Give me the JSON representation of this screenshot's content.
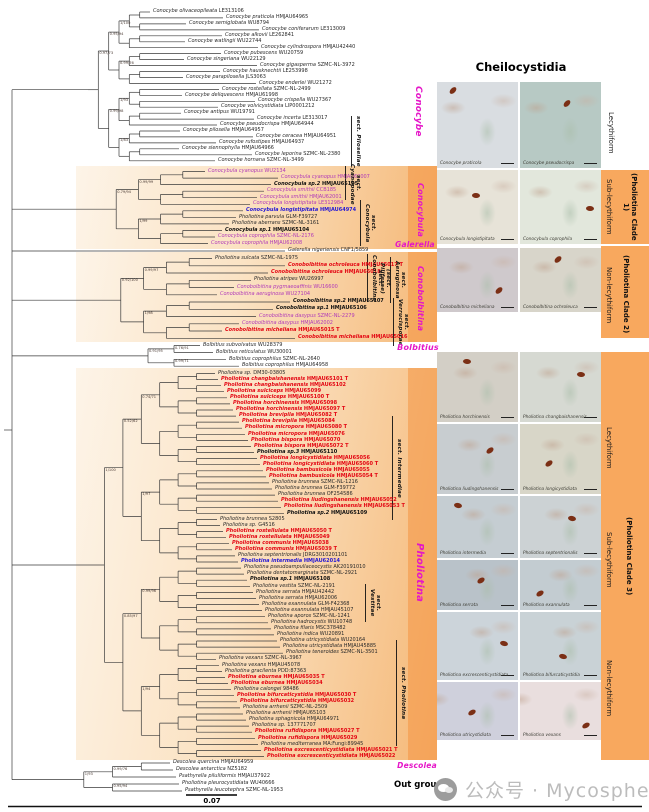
{
  "right_panel": {
    "title": "Cheilocystidia",
    "clade_labels": [
      "(Pholiotina Clade 1)",
      "(Pholiotina Clade 2)",
      "(Pholiotina Clade 3)"
    ],
    "rows": [
      {
        "form": "Lecythiform",
        "images": [
          {
            "caption": "Conocybe praticola",
            "tint": "#d9dde1"
          },
          {
            "caption": "Conocybe pseudocrispa",
            "tint": "#b7c9c4"
          }
        ]
      },
      {
        "form": "Sub-lecythiform",
        "images": [
          {
            "caption": "Conocybula longistipitata",
            "tint": "#e7e3d8"
          },
          {
            "caption": "Conocybula coprophila",
            "tint": "#e2e7dc"
          }
        ]
      },
      {
        "form": "Non-lecythiform",
        "images": [
          {
            "caption": "Conobolbitina micheliana",
            "tint": "#cfc9cc"
          },
          {
            "caption": "Conobolbitina ochroleuca",
            "tint": "#d8d5ca"
          }
        ]
      },
      {
        "form": "",
        "images": [
          {
            "caption": "Pholiotina horchinensis",
            "tint": "#d3cfc6"
          },
          {
            "caption": "Pholiotina changbaishanensis",
            "tint": "#d6d9d2"
          }
        ]
      },
      {
        "form": "Lecythiform",
        "images": [
          {
            "caption": "Pholiotina liudingshanensis",
            "tint": "#c8cdd0"
          },
          {
            "caption": "Pholiotina longicystidiata",
            "tint": "#d8d6c8"
          }
        ]
      },
      {
        "form": "",
        "images": [
          {
            "caption": "Pholiotina intermedia",
            "tint": "#c5cdd2"
          },
          {
            "caption": "Pholiotina septentrionalis",
            "tint": "#ccd2d4"
          }
        ]
      },
      {
        "form": "Sub-lecythiform",
        "images": [
          {
            "caption": "Pholiotina serrata",
            "tint": "#b9c2c9"
          },
          {
            "caption": "Pholiotina exannulata",
            "tint": "#c3ccd1"
          }
        ]
      },
      {
        "form": "",
        "images": [
          {
            "caption": "Pholiotina excrescenticystidiata",
            "tint": "#ccd4da"
          },
          {
            "caption": "Pholiotina bifurcaticystidia",
            "tint": "#c9d2d6"
          }
        ]
      },
      {
        "form": "Non-lecythiform",
        "images": [
          {
            "caption": "Pholiotina utricystidiata",
            "tint": "#cfd0dc"
          },
          {
            "caption": "Pholiotina vexans",
            "tint": "#e9dede"
          }
        ]
      }
    ]
  },
  "sections": [
    "sect. Pilosellae",
    "sect. Cyanopodae",
    "sect. Conocybula",
    "sect. Conobolbitina",
    "(sect. Piliferae)",
    "sect. Aeruginosa",
    "sect. Verrucisporae",
    "sect. Intermediae",
    "sect. Vestitae",
    "sect. Pholiotina"
  ],
  "genus_labels": [
    "Conocybe",
    "Conocybula",
    "Galerella",
    "Conobolbitina",
    "Bolbitius",
    "Pholiotina",
    "Descolea"
  ],
  "tree": {
    "scale_bar": "0.07",
    "outgroup_label": "Out group",
    "support_values": [
      "1/100",
      "0.99/76",
      "0.95/94",
      "1/93",
      "1/83",
      "0.99/98",
      "0.97/73",
      "0.99/99",
      "1/99",
      "0.79/94",
      "0.99/97",
      "1/98",
      "0.92/100",
      "0.76/91",
      "0.99/71",
      "0.91/95",
      "0.74/71",
      "1/97",
      "0.52/62",
      "0.99/96",
      "1/94",
      "0.85/97"
    ],
    "clades": [
      {
        "name": "Conocybe",
        "taxa": [
          {
            "n": "Conocybe olivaceopileata",
            "a": "LE313106",
            "s": "p"
          },
          {
            "n": "Conocybe praticola",
            "a": "HMJAU64965",
            "s": "p"
          },
          {
            "n": "Conocybe semiglobata",
            "a": "WU8794",
            "s": "p"
          },
          {
            "n": "Conocybe coniferarum",
            "a": "LE313009",
            "s": "p"
          },
          {
            "n": "Conocybe alkovii",
            "a": "LE262841",
            "s": "p"
          },
          {
            "n": "Conocybe watlingii",
            "a": "WU22744",
            "s": "p"
          },
          {
            "n": "Conocybe cylindrospora",
            "a": "HMJAU42440",
            "s": "p"
          },
          {
            "n": "Conocybe pubescens",
            "a": "WU20759",
            "s": "p"
          },
          {
            "n": "Conocybe singeriana",
            "a": "WU22129",
            "s": "p"
          },
          {
            "n": "Conocybe gigasperma",
            "a": "SZMC-NL-3972",
            "s": "p"
          },
          {
            "n": "Conocybe hausknechtii",
            "a": "LE253998",
            "s": "p"
          },
          {
            "n": "Conocybe parapilosella",
            "a": "JLS3063",
            "s": "p"
          },
          {
            "n": "Conocybe enderlei",
            "a": "WU21272",
            "s": "p"
          },
          {
            "n": "Conocybe rostellata",
            "a": "SZMC-NL-2499",
            "s": "p"
          },
          {
            "n": "Conocybe deliquescens",
            "a": "HMJAU61998",
            "s": "p"
          },
          {
            "n": "Conocybe crispella",
            "a": "WU27367",
            "s": "p"
          },
          {
            "n": "Conocybe volvicystidiata",
            "a": "LIP0001212",
            "s": "p"
          },
          {
            "n": "Conocybe antipus",
            "a": "WU19791",
            "s": "p"
          },
          {
            "n": "Conocybe incerta",
            "a": "LE313017",
            "s": "p"
          },
          {
            "n": "Conocybe pseudocrispa",
            "a": "HMJAU64944",
            "s": "p"
          },
          {
            "n": "Conocybe pilosella",
            "a": "HMJAU64957",
            "s": "p"
          },
          {
            "n": "Conocybe ceracea",
            "a": "HMJAU64951",
            "s": "p"
          },
          {
            "n": "Conocybe rufostipes",
            "a": "HMJAU64937",
            "s": "p"
          },
          {
            "n": "Conocybe siennophylla",
            "a": "HMJAU64966",
            "s": "p"
          },
          {
            "n": "Conocybe leporina",
            "a": "SZMC-NL-2380",
            "s": "p"
          },
          {
            "n": "Conocybe hornana",
            "a": "SZMC-NL-3499",
            "s": "p"
          }
        ]
      },
      {
        "name": "Conocybula",
        "taxa": [
          {
            "n": "Conocybula cyanopus",
            "a": "WU2134",
            "s": "m"
          },
          {
            "n": "Conocybula cyanopus",
            "a": "HMJAU62007",
            "s": "m"
          },
          {
            "n": "Conocybula sp.2",
            "a": "HMJAU65105",
            "s": "k"
          },
          {
            "n": "Conocybula smithii",
            "a": "CCB185",
            "s": "m"
          },
          {
            "n": "Conocybula smithii",
            "a": "HMJAU62001",
            "s": "m"
          },
          {
            "n": "Conocybula longistipitata",
            "a": "LE312984",
            "s": "m"
          },
          {
            "n": "Conocybula longistipitata",
            "a": "HMJAU64974",
            "s": "b"
          },
          {
            "n": "Pholiotina parvula",
            "a": "GLM-F39727",
            "s": "p"
          },
          {
            "n": "Pholiotina aberrans",
            "a": "SZMC-NL-3161",
            "s": "p"
          },
          {
            "n": "Conocybula sp.1",
            "a": "HMJAU65104",
            "s": "k"
          },
          {
            "n": "Conocybula coprophila",
            "a": "SZMC-NL-2176",
            "s": "m"
          },
          {
            "n": "Conocybula coprophila",
            "a": "HMJAU62008",
            "s": "m"
          }
        ]
      },
      {
        "name": "Galerella",
        "taxa": [
          {
            "n": "Galerella nigeriensis",
            "a": "CNF1/5859",
            "s": "p"
          }
        ]
      },
      {
        "name": "Conobolbitina",
        "taxa": [
          {
            "n": "Pholiotina sulcata",
            "a": "SZMC-NL-1975",
            "s": "p"
          },
          {
            "n": "Conobolbitina ochroleuca",
            "a": "HMJAU65017 T",
            "s": "r"
          },
          {
            "n": "Conobolbitina ochroleuca",
            "a": "HMJAU65018",
            "s": "r"
          },
          {
            "n": "Pholiotina atripes",
            "a": "WU26997",
            "s": "p"
          },
          {
            "n": "Conobolbitina pygmaeoaffinis",
            "a": "WU16600",
            "s": "m"
          },
          {
            "n": "Conobolbitina aeruginosa",
            "a": "WU27104",
            "s": "m"
          },
          {
            "n": "Conobolbitina sp.2",
            "a": "HMJAU65107",
            "s": "k"
          },
          {
            "n": "Conobolbitina sp.1",
            "a": "HMJAU65106",
            "s": "k"
          },
          {
            "n": "Conobolbitina dasypus",
            "a": "SZMC-NL-2279",
            "s": "m"
          },
          {
            "n": "Conobolbitina dasypus",
            "a": "HMJAU62002",
            "s": "m"
          },
          {
            "n": "Conobolbitina micheliana",
            "a": "HMJAU65015 T",
            "s": "r"
          },
          {
            "n": "Conobolbitina micheliana",
            "a": "HMJAU65016",
            "s": "r"
          }
        ]
      },
      {
        "name": "Bolbitius",
        "taxa": [
          {
            "n": "Bolbitius subvolvatus",
            "a": "WU28379",
            "s": "p"
          },
          {
            "n": "Bolbitius reticulatus",
            "a": "WU30001",
            "s": "p"
          },
          {
            "n": "Bolbitius coprophilus",
            "a": "SZMC-NL-2640",
            "s": "p"
          },
          {
            "n": "Bolbitius coprophilus",
            "a": "HMJAU64958",
            "s": "p"
          }
        ]
      },
      {
        "name": "Pholiotina",
        "taxa": [
          {
            "n": "Pholiotina sp.",
            "a": "DM30-03805",
            "s": "p"
          },
          {
            "n": "Pholiotina changbaishanensis",
            "a": "HMJAU65101 T",
            "s": "r"
          },
          {
            "n": "Pholiotina changbaishanensis",
            "a": "HMJAU65102",
            "s": "r"
          },
          {
            "n": "Pholiotina sulciceps",
            "a": "HMJAU65099",
            "s": "r"
          },
          {
            "n": "Pholiotina sulciceps",
            "a": "HMJAU65100 T",
            "s": "r"
          },
          {
            "n": "Pholiotina horchinensis",
            "a": "HMJAU65098",
            "s": "r"
          },
          {
            "n": "Pholiotina horchinensis",
            "a": "HMJAU65097 T",
            "s": "r"
          },
          {
            "n": "Pholiotina brevipila",
            "a": "HMJAU65082 T",
            "s": "r"
          },
          {
            "n": "Pholiotina brevipila",
            "a": "HMJAU65084",
            "s": "r"
          },
          {
            "n": "Pholiotina micropora",
            "a": "HMJAU65080 T",
            "s": "r"
          },
          {
            "n": "Pholiotina micropora",
            "a": "HMJAU65076",
            "s": "r"
          },
          {
            "n": "Pholiotina bispora",
            "a": "HMJAU65070",
            "s": "r"
          },
          {
            "n": "Pholiotina bispora",
            "a": "HMJAU65072 T",
            "s": "r"
          },
          {
            "n": "Pholiotina sp.3",
            "a": "HMJAU65110",
            "s": "k"
          },
          {
            "n": "Pholiotina longicystidiata",
            "a": "HMJAU65056",
            "s": "r"
          },
          {
            "n": "Pholiotina longicystidiata",
            "a": "HMJAU65060 T",
            "s": "r"
          },
          {
            "n": "Pholiotina bambusicola",
            "a": "HMJAU65055",
            "s": "r"
          },
          {
            "n": "Pholiotina bambusicola",
            "a": "HMJAU65054 T",
            "s": "r"
          },
          {
            "n": "Pholiotina brunnea",
            "a": "SZMC-NL-1216",
            "s": "p"
          },
          {
            "n": "Pholiotina brunnea",
            "a": "GLM-F39772",
            "s": "p"
          },
          {
            "n": "Pholiotina brunnea",
            "a": "OF254586",
            "s": "p"
          },
          {
            "n": "Pholiotina liudingshanensis",
            "a": "HMJAU65052",
            "s": "r"
          },
          {
            "n": "Pholiotina liudingshanensis",
            "a": "HMJAU65053 T",
            "s": "r"
          },
          {
            "n": "Pholiotina sp.2",
            "a": "HMJAU65109",
            "s": "k"
          },
          {
            "n": "Pholiotina brunnea",
            "a": "S2805",
            "s": "p"
          },
          {
            "n": "Pholiotina sp.",
            "a": "G4516",
            "s": "p"
          },
          {
            "n": "Pholiotina rostellulata",
            "a": "HMJAU65050 T",
            "s": "r"
          },
          {
            "n": "Pholiotina rostellulata",
            "a": "HMJAU65049",
            "s": "r"
          },
          {
            "n": "Pholiotina communis",
            "a": "HMJAU65038",
            "s": "r"
          },
          {
            "n": "Pholiotina communis",
            "a": "HMJAU65039 T",
            "s": "r"
          },
          {
            "n": "Pholiotina septentrionalis",
            "a": "JDRG3010201101",
            "s": "p"
          },
          {
            "n": "Pholiotina intermedia",
            "a": "HMJAU62014",
            "s": "b"
          },
          {
            "n": "Pholiotina pseudoampullaceocystis",
            "a": "AK20191010",
            "s": "p"
          },
          {
            "n": "Pholiotina dentatomarginata",
            "a": "SZMC-NL-2921",
            "s": "p"
          },
          {
            "n": "Pholiotina sp.1",
            "a": "HMJAU65108",
            "s": "k"
          },
          {
            "n": "Pholiotina vestita",
            "a": "SZMC-NL-2191",
            "s": "p"
          },
          {
            "n": "Pholiotina serrata",
            "a": "HMJAU42442",
            "s": "p"
          },
          {
            "n": "Pholiotina serrata",
            "a": "HMJAU62006",
            "s": "p"
          },
          {
            "n": "Pholiotina exannulata",
            "a": "GLM-F42368",
            "s": "p"
          },
          {
            "n": "Pholiotina exannulata",
            "a": "HMJAU45107",
            "s": "p"
          },
          {
            "n": "Pholiotina aporos",
            "a": "SZMC-NL-1241",
            "s": "p"
          },
          {
            "n": "Pholiotina hadrocystis",
            "a": "WU10748",
            "s": "p"
          },
          {
            "n": "Pholiotina filaris",
            "a": "MSC378482",
            "s": "p"
          },
          {
            "n": "Pholiotina indica",
            "a": "WU20891",
            "s": "p"
          },
          {
            "n": "Pholiotina utricystidiata",
            "a": "WU20164",
            "s": "p"
          },
          {
            "n": "Pholiotina utricystidiata",
            "a": "HMJAU45885",
            "s": "p"
          },
          {
            "n": "Pholiotina teneroides",
            "a": "SZMC-NL-3501",
            "s": "p"
          },
          {
            "n": "Pholiotina vexans",
            "a": "SZMC-NL-3967",
            "s": "p"
          },
          {
            "n": "Pholiotina vexans",
            "a": "HMJAU45078",
            "s": "p"
          },
          {
            "n": "Pholiotina gracilenta",
            "a": "PDD:87363",
            "s": "p"
          },
          {
            "n": "Pholiotina eburnea",
            "a": "HMJAU65035 T",
            "s": "r"
          },
          {
            "n": "Pholiotina eburnea",
            "a": "HMJAU65034",
            "s": "r"
          },
          {
            "n": "Pholiotina calongei",
            "a": "98486",
            "s": "p"
          },
          {
            "n": "Pholiotina bifurcaticystidia",
            "a": "HMJAU65030 T",
            "s": "r"
          },
          {
            "n": "Pholiotina bifurcaticystidia",
            "a": "HMJAU65032",
            "s": "r"
          },
          {
            "n": "Pholiotina arrhenii",
            "a": "SZMC-NL-2509",
            "s": "p"
          },
          {
            "n": "Pholiotina arrhenii",
            "a": "HMJAU65103",
            "s": "p"
          },
          {
            "n": "Pholiotina sphagnicola",
            "a": "HMJAU64971",
            "s": "p"
          },
          {
            "n": "Pholiotina sp.",
            "a": "137771707",
            "s": "p"
          },
          {
            "n": "Pholiotina rufidispora",
            "a": "HMJAU65027 T",
            "s": "r"
          },
          {
            "n": "Pholiotina rufidispora",
            "a": "HMJAU65029",
            "s": "r"
          },
          {
            "n": "Pholiotina mediterranea",
            "a": "MA:Fungi:89945",
            "s": "p"
          },
          {
            "n": "Pholiotina excrescenticystidiata",
            "a": "HMJAU65021 T",
            "s": "r"
          },
          {
            "n": "Pholiotina excrescenticystidiata",
            "a": "HMJAU65022",
            "s": "r"
          }
        ]
      },
      {
        "name": "Outgroup",
        "taxa": [
          {
            "n": "Descolea quercina",
            "a": "HMJAU64959",
            "s": "p"
          },
          {
            "n": "Descolea antarctica",
            "a": "NZ5182",
            "s": "p"
          },
          {
            "n": "Psathyrella piluliformis",
            "a": "HMJAU37922",
            "s": "p"
          },
          {
            "n": "Pholiotina pleurocystidiata",
            "a": "WU40666",
            "s": "p"
          },
          {
            "n": "Psathyrella leucotephra",
            "a": "SZMC-NL-1953",
            "s": "p"
          }
        ]
      }
    ]
  },
  "watermark": {
    "text": "公众号 · Mycosphere"
  },
  "colors": {
    "genus_magenta": "#e516c8",
    "taxon_magenta": "#b03ab8",
    "taxon_red": "#e30613",
    "taxon_blue": "#2418d6",
    "clade_box_orange": "#f5b877",
    "panel_orange": "#f8a85e",
    "spore_brown": "#7b2f15"
  }
}
